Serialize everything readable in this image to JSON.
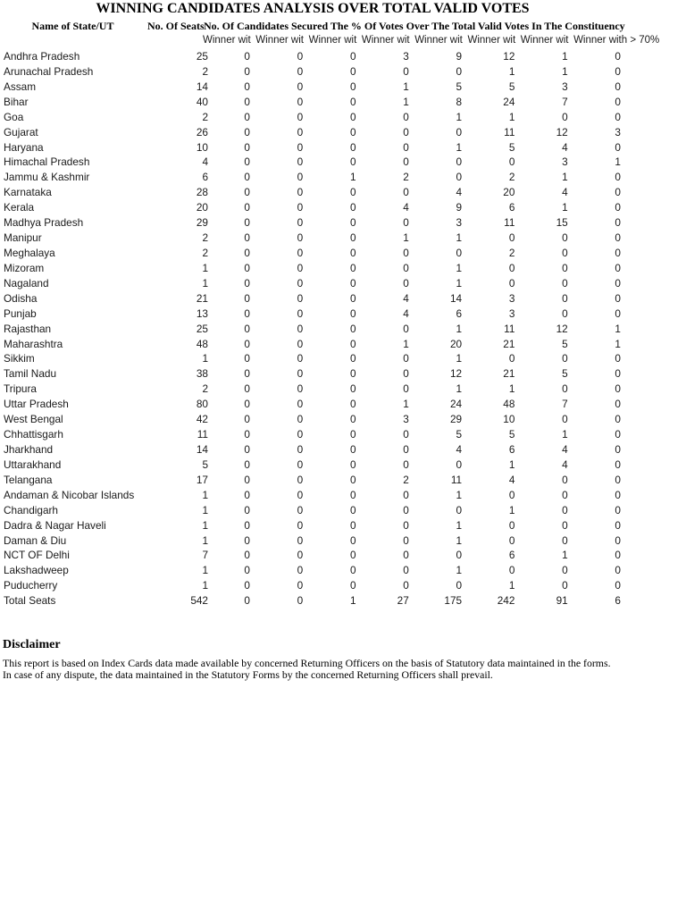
{
  "title": "WINNING CANDIDATES ANALYSIS OVER TOTAL VALID VOTES",
  "colors": {
    "background": "#ffffff",
    "heading_text": "#000000",
    "data_text": "#1a1a1a"
  },
  "table": {
    "header": {
      "state_col": "Name of State/UT",
      "seats_col": "No. Of Seats",
      "candidates_span": "No. Of Candidates Secured The % Of Votes Over The Total Valid Votes In The Constituency",
      "sub_columns": [
        "Winner wit",
        "Winner wit",
        "Winner wit",
        "Winner wit",
        "Winner wit",
        "Winner wit",
        "Winner wit",
        "Winner with > 70%"
      ]
    },
    "rows": [
      {
        "state": "Andhra Pradesh",
        "seats": 25,
        "values": [
          0,
          0,
          0,
          3,
          9,
          12,
          1,
          0
        ]
      },
      {
        "state": "Arunachal Pradesh",
        "seats": 2,
        "values": [
          0,
          0,
          0,
          0,
          0,
          1,
          1,
          0
        ]
      },
      {
        "state": "Assam",
        "seats": 14,
        "values": [
          0,
          0,
          0,
          1,
          5,
          5,
          3,
          0
        ]
      },
      {
        "state": "Bihar",
        "seats": 40,
        "values": [
          0,
          0,
          0,
          1,
          8,
          24,
          7,
          0
        ]
      },
      {
        "state": "Goa",
        "seats": 2,
        "values": [
          0,
          0,
          0,
          0,
          1,
          1,
          0,
          0
        ]
      },
      {
        "state": "Gujarat",
        "seats": 26,
        "values": [
          0,
          0,
          0,
          0,
          0,
          11,
          12,
          3
        ]
      },
      {
        "state": "Haryana",
        "seats": 10,
        "values": [
          0,
          0,
          0,
          0,
          1,
          5,
          4,
          0
        ]
      },
      {
        "state": "Himachal Pradesh",
        "seats": 4,
        "values": [
          0,
          0,
          0,
          0,
          0,
          0,
          3,
          1
        ]
      },
      {
        "state": "Jammu & Kashmir",
        "seats": 6,
        "values": [
          0,
          0,
          1,
          2,
          0,
          2,
          1,
          0
        ]
      },
      {
        "state": "Karnataka",
        "seats": 28,
        "values": [
          0,
          0,
          0,
          0,
          4,
          20,
          4,
          0
        ]
      },
      {
        "state": "Kerala",
        "seats": 20,
        "values": [
          0,
          0,
          0,
          4,
          9,
          6,
          1,
          0
        ]
      },
      {
        "state": "Madhya Pradesh",
        "seats": 29,
        "values": [
          0,
          0,
          0,
          0,
          3,
          11,
          15,
          0
        ]
      },
      {
        "state": "Manipur",
        "seats": 2,
        "values": [
          0,
          0,
          0,
          1,
          1,
          0,
          0,
          0
        ]
      },
      {
        "state": "Meghalaya",
        "seats": 2,
        "values": [
          0,
          0,
          0,
          0,
          0,
          2,
          0,
          0
        ]
      },
      {
        "state": "Mizoram",
        "seats": 1,
        "values": [
          0,
          0,
          0,
          0,
          1,
          0,
          0,
          0
        ]
      },
      {
        "state": "Nagaland",
        "seats": 1,
        "values": [
          0,
          0,
          0,
          0,
          1,
          0,
          0,
          0
        ]
      },
      {
        "state": "Odisha",
        "seats": 21,
        "values": [
          0,
          0,
          0,
          4,
          14,
          3,
          0,
          0
        ]
      },
      {
        "state": "Punjab",
        "seats": 13,
        "values": [
          0,
          0,
          0,
          4,
          6,
          3,
          0,
          0
        ]
      },
      {
        "state": "Rajasthan",
        "seats": 25,
        "values": [
          0,
          0,
          0,
          0,
          1,
          11,
          12,
          1
        ]
      },
      {
        "state": "Maharashtra",
        "seats": 48,
        "values": [
          0,
          0,
          0,
          1,
          20,
          21,
          5,
          1
        ]
      },
      {
        "state": "Sikkim",
        "seats": 1,
        "values": [
          0,
          0,
          0,
          0,
          1,
          0,
          0,
          0
        ]
      },
      {
        "state": "Tamil Nadu",
        "seats": 38,
        "values": [
          0,
          0,
          0,
          0,
          12,
          21,
          5,
          0
        ]
      },
      {
        "state": "Tripura",
        "seats": 2,
        "values": [
          0,
          0,
          0,
          0,
          1,
          1,
          0,
          0
        ]
      },
      {
        "state": "Uttar Pradesh",
        "seats": 80,
        "values": [
          0,
          0,
          0,
          1,
          24,
          48,
          7,
          0
        ]
      },
      {
        "state": "West Bengal",
        "seats": 42,
        "values": [
          0,
          0,
          0,
          3,
          29,
          10,
          0,
          0
        ]
      },
      {
        "state": "Chhattisgarh",
        "seats": 11,
        "values": [
          0,
          0,
          0,
          0,
          5,
          5,
          1,
          0
        ]
      },
      {
        "state": "Jharkhand",
        "seats": 14,
        "values": [
          0,
          0,
          0,
          0,
          4,
          6,
          4,
          0
        ]
      },
      {
        "state": "Uttarakhand",
        "seats": 5,
        "values": [
          0,
          0,
          0,
          0,
          0,
          1,
          4,
          0
        ]
      },
      {
        "state": "Telangana",
        "seats": 17,
        "values": [
          0,
          0,
          0,
          2,
          11,
          4,
          0,
          0
        ]
      },
      {
        "state": "Andaman & Nicobar Islands",
        "seats": 1,
        "values": [
          0,
          0,
          0,
          0,
          1,
          0,
          0,
          0
        ]
      },
      {
        "state": "Chandigarh",
        "seats": 1,
        "values": [
          0,
          0,
          0,
          0,
          0,
          1,
          0,
          0
        ]
      },
      {
        "state": "Dadra & Nagar Haveli",
        "seats": 1,
        "values": [
          0,
          0,
          0,
          0,
          1,
          0,
          0,
          0
        ]
      },
      {
        "state": "Daman & Diu",
        "seats": 1,
        "values": [
          0,
          0,
          0,
          0,
          1,
          0,
          0,
          0
        ]
      },
      {
        "state": "NCT OF Delhi",
        "seats": 7,
        "values": [
          0,
          0,
          0,
          0,
          0,
          6,
          1,
          0
        ]
      },
      {
        "state": "Lakshadweep",
        "seats": 1,
        "values": [
          0,
          0,
          0,
          0,
          1,
          0,
          0,
          0
        ]
      },
      {
        "state": "Puducherry",
        "seats": 1,
        "values": [
          0,
          0,
          0,
          0,
          0,
          1,
          0,
          0
        ]
      },
      {
        "state": "Total Seats",
        "seats": 542,
        "values": [
          0,
          0,
          1,
          27,
          175,
          242,
          91,
          6
        ],
        "total": true
      }
    ]
  },
  "disclaimer": {
    "heading": "Disclaimer",
    "lines": [
      "This report is based on Index Cards data made available by concerned Returning Officers on the basis of Statutory data maintained in the forms.",
      "In case of any dispute, the data maintained in the Statutory Forms by the concerned Returning Officers shall prevail."
    ]
  }
}
